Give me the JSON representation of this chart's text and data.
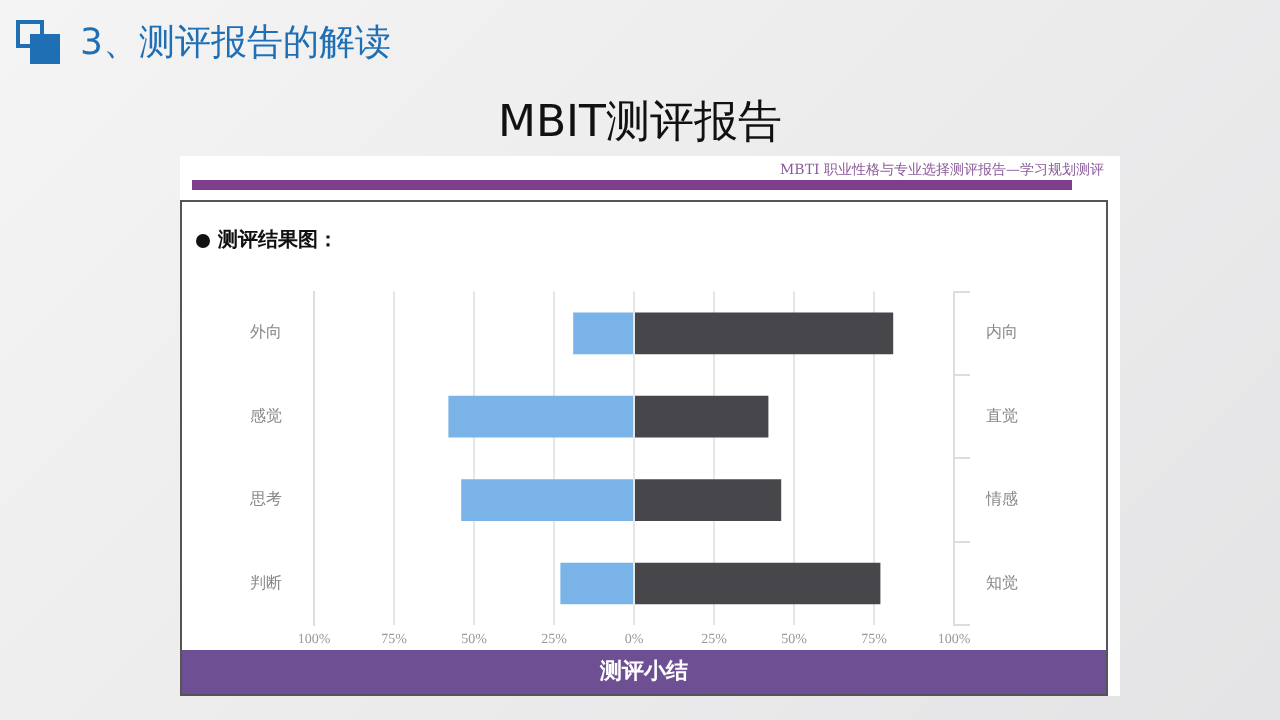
{
  "chart_data": {
    "type": "bar",
    "orientation": "horizontal",
    "stacked": true,
    "title": "MBIT测评报告",
    "subtitle": "3、测评报告的解读",
    "annotations": [
      "MBTI 职业性格与专业选择测评报告—学习规划测评",
      "测评结果图：",
      "测评小结"
    ],
    "categories": [
      "外向",
      "感觉",
      "思考",
      "判断"
    ],
    "y2_categories": [
      "内向",
      "直觉",
      "情感",
      "知觉"
    ],
    "series": [
      {
        "color": "#7ab3e8",
        "values": [
          -19,
          -58,
          -54,
          -23
        ]
      },
      {
        "color": "#47464b",
        "values": [
          81,
          42,
          46,
          77
        ]
      }
    ],
    "xlim": [
      -100,
      100
    ],
    "xticks": [
      {
        "value": -100,
        "label": "100%"
      },
      {
        "value": -75,
        "label": "75%"
      },
      {
        "value": -50,
        "label": "50%"
      },
      {
        "value": -25,
        "label": "25%"
      },
      {
        "value": 0,
        "label": "0%"
      },
      {
        "value": 25,
        "label": "25%"
      },
      {
        "value": 50,
        "label": "50%"
      },
      {
        "value": 75,
        "label": "75%"
      },
      {
        "value": 100,
        "label": "100%"
      }
    ],
    "grid": "x",
    "legend": false
  }
}
